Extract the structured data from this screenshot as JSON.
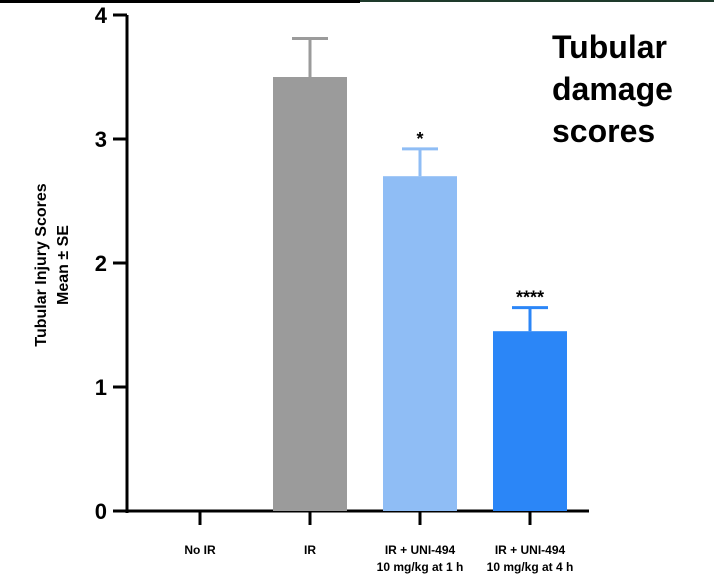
{
  "chart_data": {
    "type": "bar",
    "title_lines": [
      "Tubular",
      "damage",
      "scores"
    ],
    "ylabel_lines": [
      "Tubular Injury Scores",
      "Mean ± SE"
    ],
    "xlabel": "",
    "ylim": [
      0,
      4
    ],
    "yticks": [
      "0",
      "1",
      "2",
      "3",
      "4"
    ],
    "categories": [
      {
        "line1": "No IR",
        "line2": ""
      },
      {
        "line1": "IR",
        "line2": ""
      },
      {
        "line1": "IR + UNI-494",
        "line2": "10  mg/kg at 1 h"
      },
      {
        "line1": "IR + UNI-494",
        "line2": "10 mg/kg at 4 h"
      }
    ],
    "values": [
      0,
      3.5,
      2.7,
      1.45
    ],
    "errors": [
      0,
      0.31,
      0.22,
      0.19
    ],
    "significance": [
      "",
      "",
      "*",
      "****"
    ],
    "colors": [
      "#9b9b9b",
      "#9b9b9b",
      "#8fbdf5",
      "#2b86f7"
    ],
    "grid": false
  }
}
